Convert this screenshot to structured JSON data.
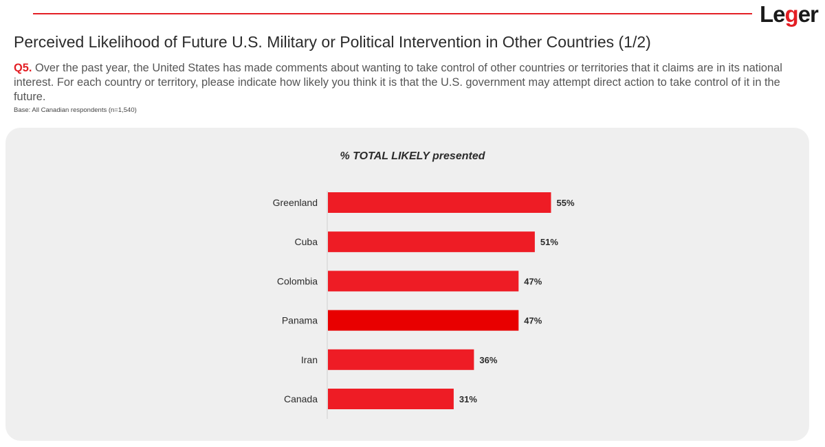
{
  "logo": {
    "text": "Leger"
  },
  "header": {
    "title": "Perceived Likelihood of Future U.S. Military or Political Intervention in Other Countries (1/2)",
    "question_number": "Q5.",
    "question_text": "Over the past year, the United States has made comments about wanting to take control of other countries or territories that it claims are in its national interest. For each country or territory, please indicate how likely you think it is that the U.S. government may attempt direct action to take control of it in the future.",
    "base": "Base: All Canadian respondents (n=1,540)"
  },
  "colors": {
    "accent": "#e31e24",
    "bar": "#ee1c25",
    "bar_highlight": "#e80000",
    "panel": "#efefef"
  },
  "chart_data": {
    "type": "bar",
    "orientation": "horizontal",
    "title": "% TOTAL LIKELY presented",
    "categories": [
      "Greenland",
      "Cuba",
      "Colombia",
      "Panama",
      "Iran",
      "Canada"
    ],
    "values": [
      55,
      51,
      47,
      47,
      36,
      31
    ],
    "value_labels": [
      "55%",
      "51%",
      "47%",
      "47%",
      "36%",
      "31%"
    ],
    "unit": "%",
    "highlight_category": "Panama",
    "xlim": [
      0,
      100
    ],
    "grid": false,
    "legend": "none"
  }
}
